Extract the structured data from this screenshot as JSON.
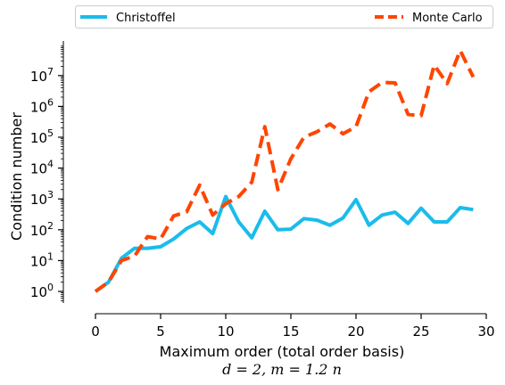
{
  "chart_data": {
    "type": "line",
    "xlabel": "Maximum order (total order basis)",
    "xlabel_sub": "d = 2, m = 1.2 n",
    "ylabel": "Condition number",
    "x_ticks": [
      "0",
      "5",
      "10",
      "15",
      "20",
      "25",
      "30"
    ],
    "xlim": [
      0,
      30
    ],
    "y_scale": "log",
    "ylim": [
      0.5,
      100000000.0
    ],
    "y_ticks": [
      {
        "base": "10",
        "exp": "0"
      },
      {
        "base": "10",
        "exp": "1"
      },
      {
        "base": "10",
        "exp": "2"
      },
      {
        "base": "10",
        "exp": "3"
      },
      {
        "base": "10",
        "exp": "4"
      },
      {
        "base": "10",
        "exp": "5"
      },
      {
        "base": "10",
        "exp": "6"
      },
      {
        "base": "10",
        "exp": "7"
      }
    ],
    "legend_position": "top, spanning width",
    "grid": false,
    "x": [
      0,
      1,
      2,
      3,
      4,
      5,
      6,
      7,
      8,
      9,
      10,
      11,
      12,
      13,
      14,
      15,
      16,
      17,
      18,
      19,
      20,
      21,
      22,
      23,
      24,
      25,
      26,
      27,
      28,
      29
    ],
    "series": [
      {
        "name": "Christoffel",
        "color": "#1ABCEB",
        "linestyle": "solid",
        "values": [
          1,
          2,
          12,
          25,
          25,
          28,
          50,
          110,
          180,
          75,
          1200,
          180,
          55,
          400,
          100,
          105,
          230,
          205,
          140,
          240,
          950,
          140,
          300,
          370,
          160,
          500,
          180,
          180,
          520,
          450
        ]
      },
      {
        "name": "Monte Carlo",
        "color": "#FF4500",
        "linestyle": "dashed",
        "values": [
          1,
          2,
          10,
          14,
          60,
          50,
          280,
          380,
          2800,
          300,
          700,
          1200,
          3500,
          220000,
          2000,
          20000,
          100000,
          150000,
          270000,
          130000,
          220000,
          3000000,
          6000000,
          5800000,
          550000,
          500000,
          22000000,
          5500000,
          65000000,
          9000000
        ]
      }
    ]
  }
}
